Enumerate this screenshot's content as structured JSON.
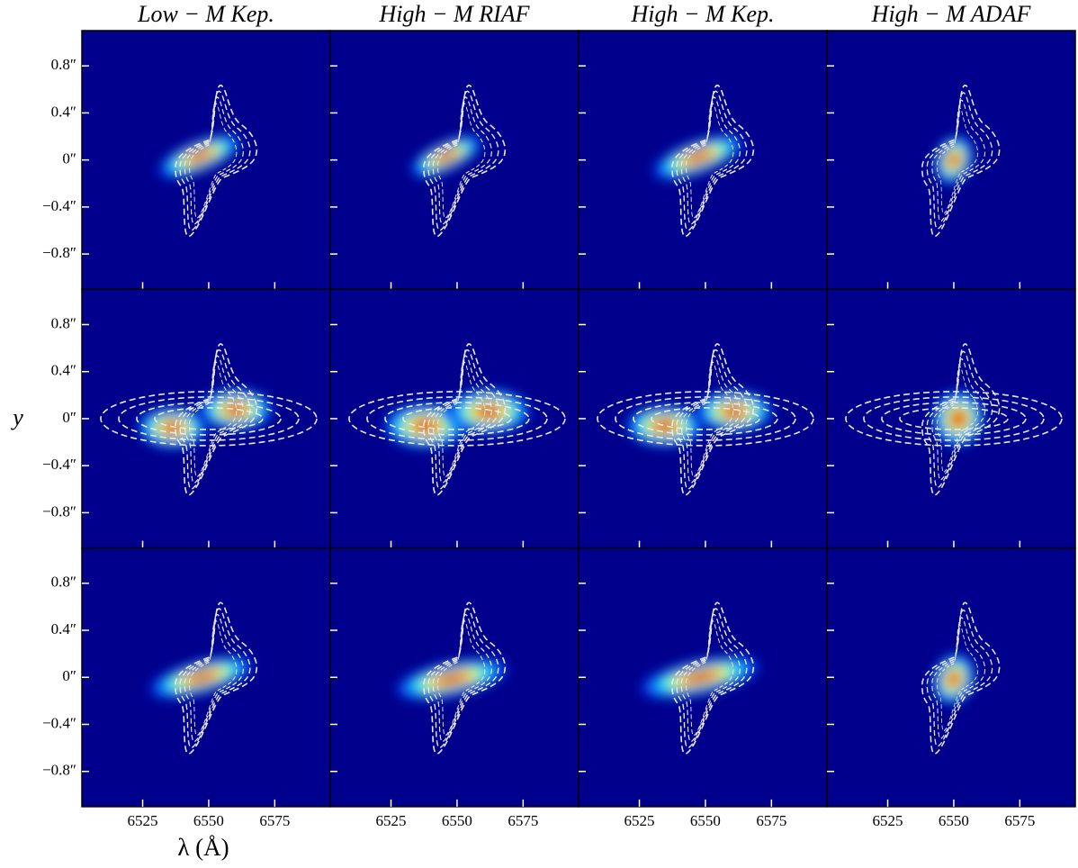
{
  "chart_data": {
    "type": "heatmap",
    "column_titles": [
      "Low − M Kep.",
      "High − M RIAF",
      "High − M Kep.",
      "High − M ADAF"
    ],
    "xlabel": "λ (Å)",
    "ylabel": "y",
    "xlim": [
      6502,
      6596
    ],
    "ylim": [
      -1.1,
      1.1
    ],
    "xticks": [
      6525,
      6550,
      6575
    ],
    "yticks": [
      {
        "value": 0.8,
        "label": "0.8″"
      },
      {
        "value": 0.4,
        "label": "0.4″"
      },
      {
        "value": 0,
        "label": "0″"
      },
      {
        "value": -0.4,
        "label": "−0.4″"
      },
      {
        "value": -0.8,
        "label": "−0.8″"
      }
    ],
    "grid": false
  }
}
